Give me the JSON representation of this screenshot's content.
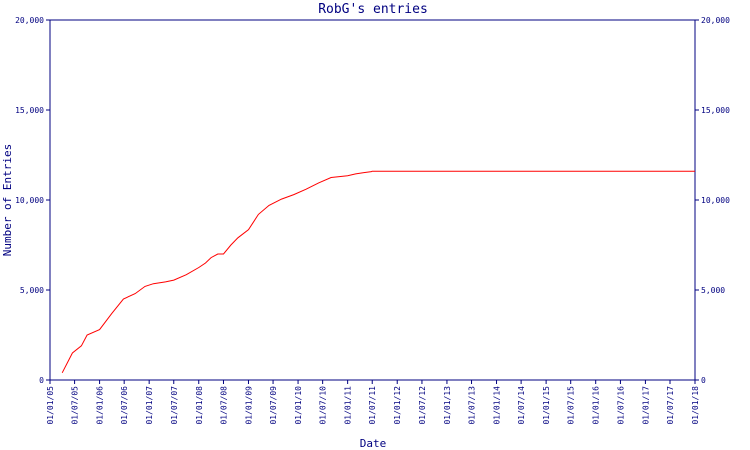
{
  "chart_data": {
    "type": "line",
    "title": "RobG's entries",
    "xlabel": "Date",
    "ylabel": "Number of Entries",
    "ylim": [
      0,
      20000
    ],
    "xlim": [
      "2005-01-01",
      "2018-01-01"
    ],
    "y_ticks": [
      0,
      5000,
      10000,
      15000,
      20000
    ],
    "y_tick_labels": [
      "0",
      "5,000",
      "10,000",
      "15,000",
      "20,000"
    ],
    "x_ticks": [
      "2005-01-01",
      "2005-07-01",
      "2006-01-01",
      "2006-07-01",
      "2007-01-01",
      "2007-07-01",
      "2008-01-01",
      "2008-07-01",
      "2009-01-01",
      "2009-07-01",
      "2010-01-01",
      "2010-07-01",
      "2011-01-01",
      "2011-07-01",
      "2012-01-01",
      "2012-07-01",
      "2013-01-01",
      "2013-07-01",
      "2014-01-01",
      "2014-07-01",
      "2015-01-01",
      "2015-07-01",
      "2016-01-01",
      "2016-07-01",
      "2017-01-01",
      "2017-07-01",
      "2018-01-01"
    ],
    "x_tick_labels": [
      "01/01/05",
      "01/07/05",
      "01/01/06",
      "01/07/06",
      "01/01/07",
      "01/07/07",
      "01/01/08",
      "01/07/08",
      "01/01/09",
      "01/07/09",
      "01/01/10",
      "01/07/10",
      "01/01/11",
      "01/07/11",
      "01/01/12",
      "01/07/12",
      "01/01/13",
      "01/07/13",
      "01/01/14",
      "01/07/14",
      "01/01/15",
      "01/07/15",
      "01/01/16",
      "01/07/16",
      "01/01/17",
      "01/07/17",
      "01/01/18"
    ],
    "grid": false,
    "colors": {
      "axis": "#000080",
      "line": "#ff0000",
      "background": "#ffffff"
    },
    "series": [
      {
        "x": [
          "2005-04-01",
          "2005-06-15",
          "2005-08-20",
          "2005-10-01",
          "2006-01-01",
          "2006-04-01",
          "2006-06-25",
          "2006-09-20",
          "2006-12-01",
          "2007-02-01",
          "2007-05-01",
          "2007-07-01",
          "2007-10-01",
          "2008-01-01",
          "2008-02-20",
          "2008-04-01",
          "2008-05-20",
          "2008-07-01",
          "2008-08-25",
          "2008-10-15",
          "2009-01-01",
          "2009-03-15",
          "2009-06-01",
          "2009-09-01",
          "2009-12-01",
          "2010-03-01",
          "2010-06-01",
          "2010-09-01",
          "2011-01-01",
          "2011-03-01",
          "2011-05-01",
          "2011-06-25",
          "2011-07-01",
          "2018-04-01"
        ],
        "y": [
          400,
          1500,
          1900,
          2500,
          2800,
          3700,
          4500,
          4800,
          5200,
          5350,
          5450,
          5550,
          5850,
          6250,
          6500,
          6800,
          7000,
          7000,
          7500,
          7900,
          8350,
          9200,
          9700,
          10050,
          10300,
          10600,
          10950,
          11250,
          11350,
          11450,
          11520,
          11580,
          11600,
          11600
        ]
      }
    ]
  }
}
